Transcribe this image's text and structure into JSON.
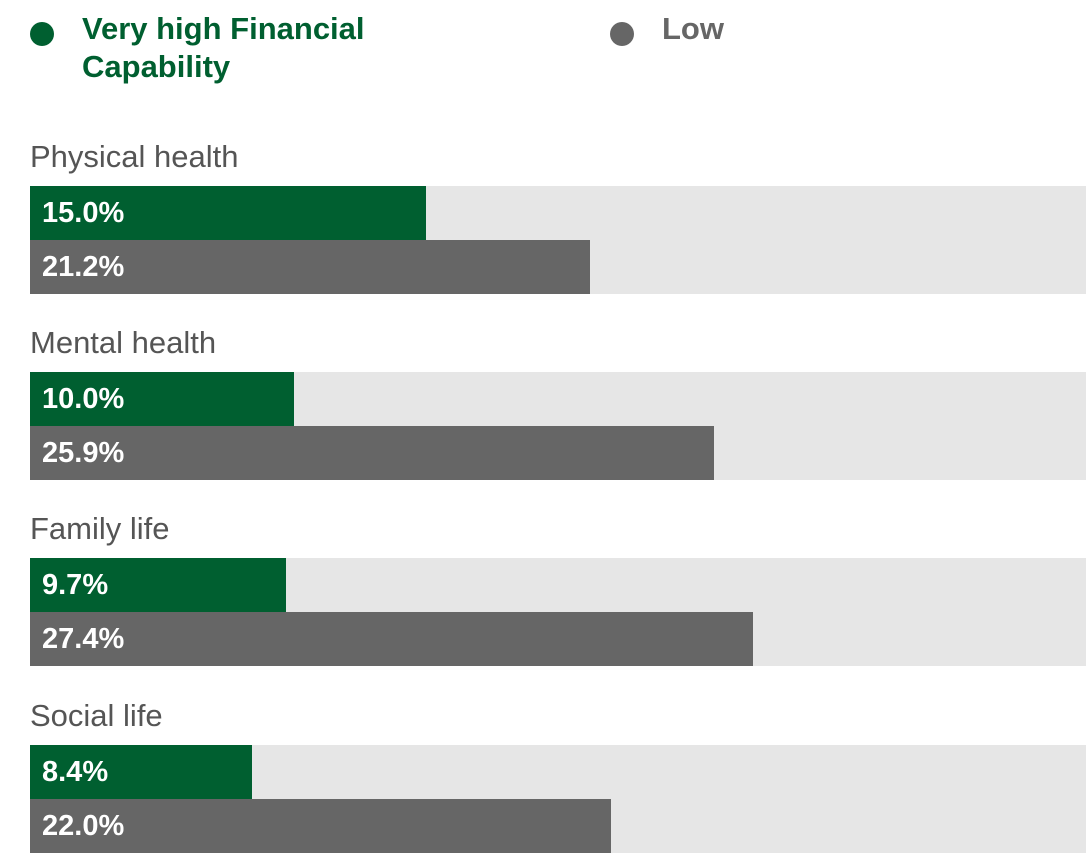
{
  "chart_data": {
    "type": "bar",
    "orientation": "horizontal",
    "categories": [
      "Physical health",
      "Mental health",
      "Family life",
      "Social life"
    ],
    "series": [
      {
        "name": "Very high Financial Capability",
        "color": "#005f30",
        "values": [
          15.0,
          10.0,
          9.7,
          8.4
        ],
        "value_labels": [
          "15.0%",
          "10.0%",
          "9.7%",
          "8.4%"
        ]
      },
      {
        "name": "Low",
        "color": "#666666",
        "values": [
          21.2,
          25.9,
          27.4,
          22.0
        ],
        "value_labels": [
          "21.2%",
          "25.9%",
          "27.4%",
          "22.0%"
        ]
      }
    ],
    "xlim": [
      0,
      40
    ],
    "track_color": "#e6e6e6",
    "legend": "top"
  }
}
